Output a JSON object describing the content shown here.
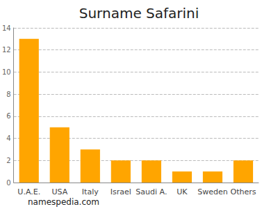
{
  "chart_data": {
    "type": "bar",
    "title": "Surname Safarini",
    "categories": [
      "U.A.E.",
      "USA",
      "Italy",
      "Israel",
      "Saudi A.",
      "UK",
      "Sweden",
      "Others"
    ],
    "values": [
      13,
      5,
      3,
      2,
      2,
      1,
      1,
      2
    ],
    "color": "#ffa500",
    "ylim": [
      0,
      14
    ],
    "yticks": [
      0,
      2,
      4,
      6,
      8,
      10,
      12,
      14
    ],
    "grid": true,
    "annotations": [
      "namespedia.com"
    ]
  }
}
